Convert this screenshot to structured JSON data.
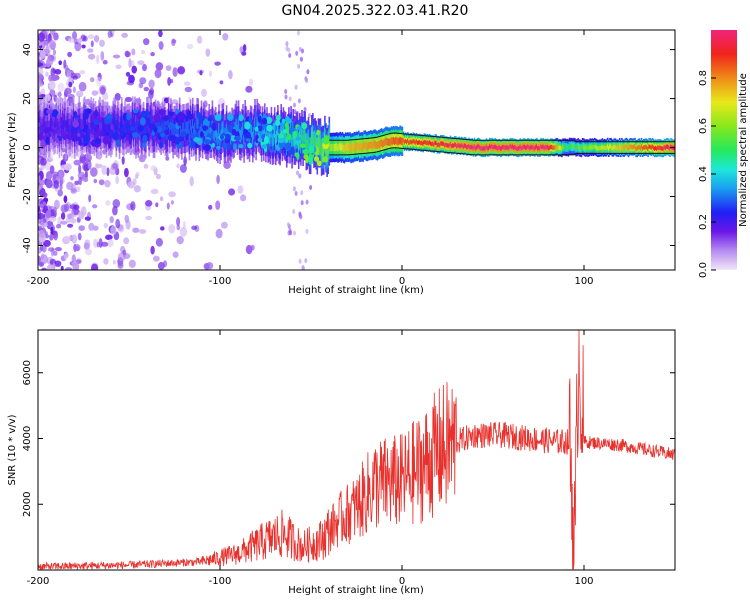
{
  "title": "GN04.2025.322.03.41.R20",
  "colors": {
    "snr_line": "#e8302c",
    "axis": "#000000",
    "background": "#ffffff"
  },
  "chart_data": [
    {
      "type": "heatmap",
      "xlabel": "Height of straight line (km)",
      "ylabel": "Frequency (Hz)",
      "xlim": [
        -200,
        150
      ],
      "ylim": [
        -50,
        48
      ],
      "xticks": [
        -200,
        -100,
        0,
        100
      ],
      "yticks": [
        -40,
        -20,
        0,
        20,
        40
      ],
      "colorbar": {
        "label": "Normalized spectral amplitude",
        "range": [
          0,
          1
        ],
        "ticks": [
          0.0,
          0.2,
          0.4,
          0.6,
          0.8
        ]
      },
      "ridge": {
        "description_points": [
          {
            "x": -200,
            "freq": 8,
            "amp": 0.2
          },
          {
            "x": -150,
            "freq": 8,
            "amp": 0.25
          },
          {
            "x": -120,
            "freq": 8,
            "amp": 0.3
          },
          {
            "x": -100,
            "freq": 6,
            "amp": 0.35
          },
          {
            "x": -80,
            "freq": 7,
            "amp": 0.35
          },
          {
            "x": -60,
            "freq": 4,
            "amp": 0.45
          },
          {
            "x": -45,
            "freq": 0,
            "amp": 0.55
          },
          {
            "x": -30,
            "freq": 0,
            "amp": 0.75
          },
          {
            "x": -15,
            "freq": 1,
            "amp": 0.8
          },
          {
            "x": -5,
            "freq": 3,
            "amp": 0.85
          },
          {
            "x": 10,
            "freq": 2,
            "amp": 0.9
          },
          {
            "x": 40,
            "freq": 0,
            "amp": 1.0
          },
          {
            "x": 80,
            "freq": 0,
            "amp": 1.0
          },
          {
            "x": 90,
            "freq": 0,
            "amp": 0.5
          },
          {
            "x": 150,
            "freq": 0,
            "amp": 1.0
          }
        ]
      }
    },
    {
      "type": "line",
      "xlabel": "Height of straight line (km)",
      "ylabel": "SNR (10 * v/v)",
      "xlim": [
        -200,
        150
      ],
      "ylim": [
        0,
        7300
      ],
      "xticks": [
        -200,
        -100,
        0,
        100
      ],
      "yticks": [
        2000,
        4000,
        6000
      ],
      "series": [
        {
          "name": "SNR",
          "envelope": [
            {
              "x": -200,
              "y": 100
            },
            {
              "x": -150,
              "y": 150
            },
            {
              "x": -110,
              "y": 250
            },
            {
              "x": -90,
              "y": 500
            },
            {
              "x": -75,
              "y": 900
            },
            {
              "x": -65,
              "y": 1100
            },
            {
              "x": -55,
              "y": 700
            },
            {
              "x": -45,
              "y": 900
            },
            {
              "x": -35,
              "y": 1500
            },
            {
              "x": -25,
              "y": 1900
            },
            {
              "x": -15,
              "y": 2600
            },
            {
              "x": 0,
              "y": 2700
            },
            {
              "x": 10,
              "y": 3100
            },
            {
              "x": 20,
              "y": 3600
            },
            {
              "x": 30,
              "y": 3900
            },
            {
              "x": 40,
              "y": 4100
            },
            {
              "x": 55,
              "y": 4100
            },
            {
              "x": 70,
              "y": 4000
            },
            {
              "x": 85,
              "y": 3900
            },
            {
              "x": 92,
              "y": 3900
            },
            {
              "x": 95,
              "y": 500
            },
            {
              "x": 97,
              "y": 7000
            },
            {
              "x": 100,
              "y": 3900
            },
            {
              "x": 120,
              "y": 3800
            },
            {
              "x": 150,
              "y": 3500
            }
          ]
        }
      ]
    }
  ]
}
